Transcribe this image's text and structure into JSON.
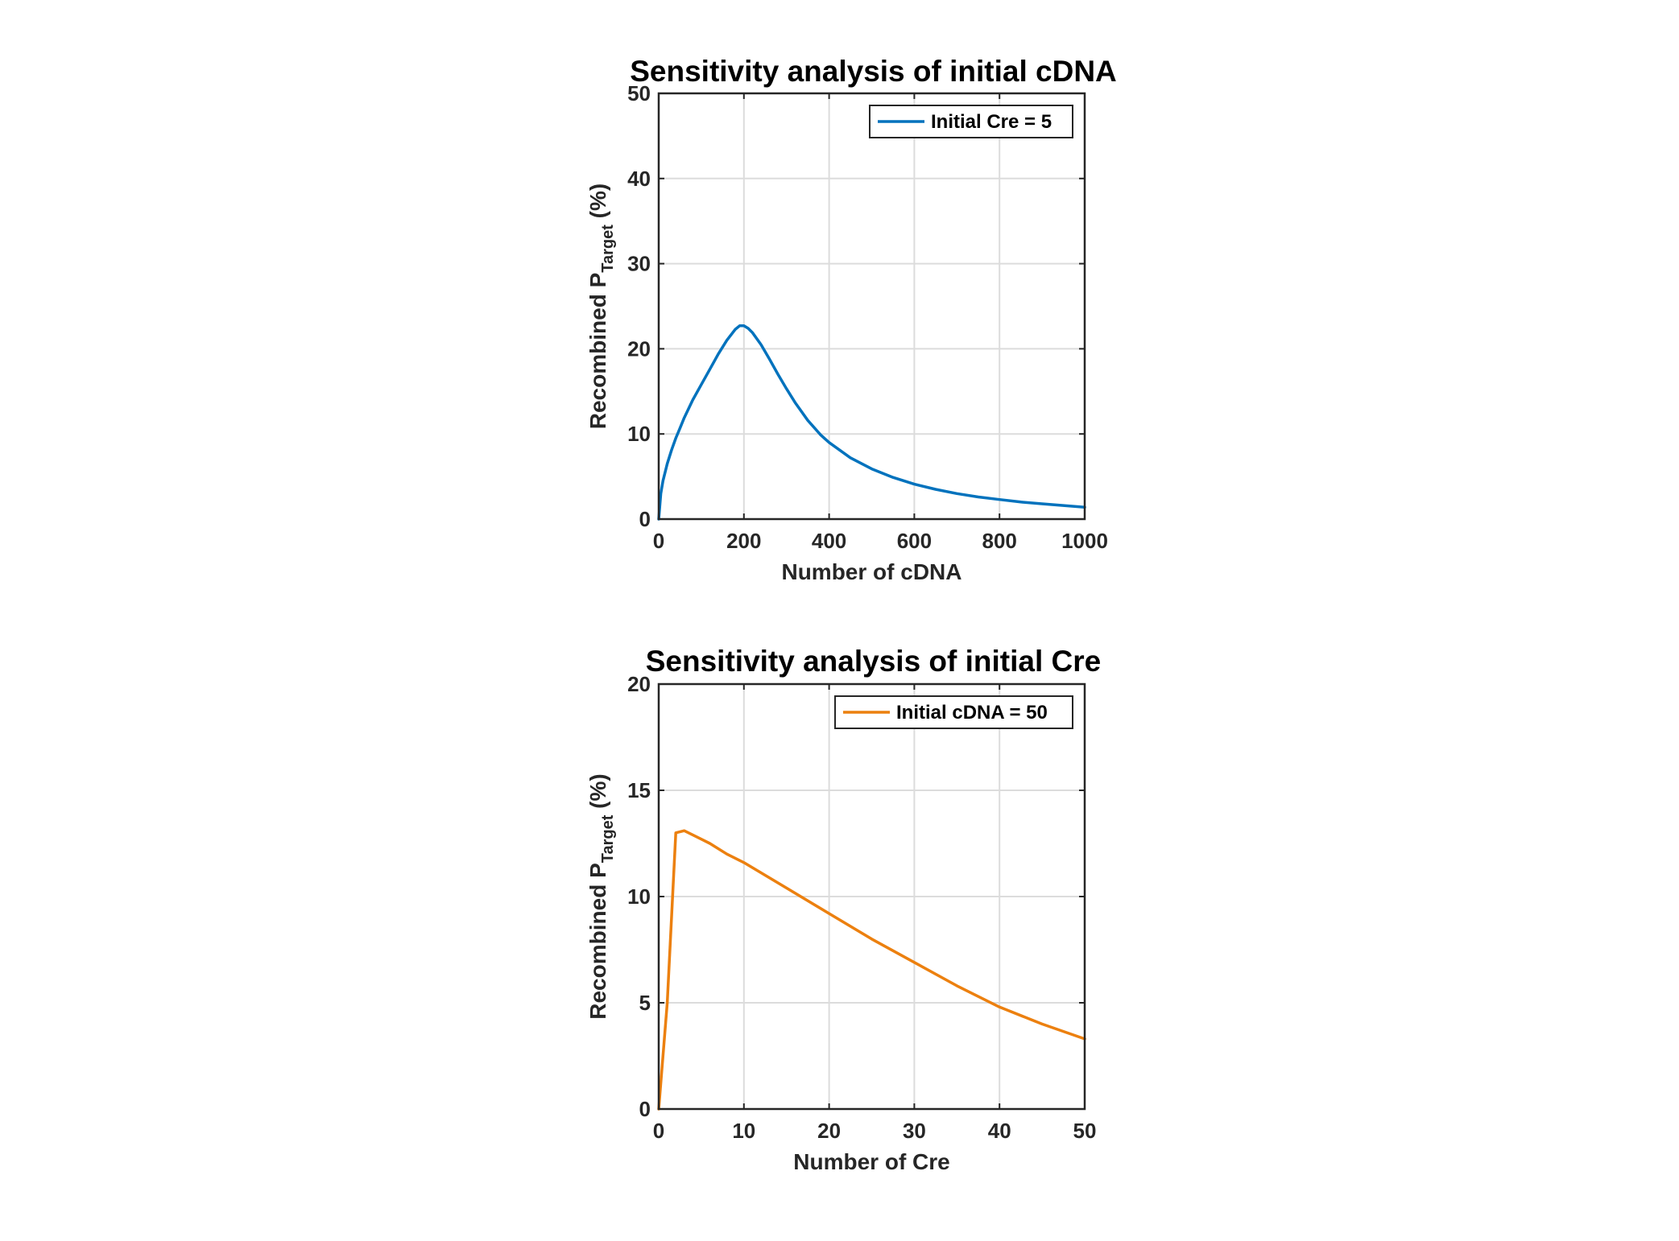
{
  "chart_data": [
    {
      "type": "line",
      "title": "Sensitivity analysis of initial cDNA",
      "xlabel": "Number of cDNA",
      "ylabel": {
        "main": "Recombined P",
        "subscript": "Target",
        "suffix": " (%)"
      },
      "xlim": [
        0,
        1000
      ],
      "ylim": [
        0,
        50
      ],
      "xticks": [
        0,
        200,
        400,
        600,
        800,
        1000
      ],
      "yticks": [
        0,
        10,
        20,
        30,
        40,
        50
      ],
      "grid": true,
      "legend_position": "top-right",
      "series": [
        {
          "name": "Initial Cre = 5",
          "color": "#0072BD",
          "x": [
            0,
            5,
            10,
            20,
            30,
            40,
            50,
            60,
            80,
            100,
            120,
            140,
            160,
            180,
            190,
            200,
            210,
            220,
            240,
            260,
            280,
            300,
            320,
            350,
            380,
            400,
            450,
            500,
            550,
            600,
            650,
            700,
            750,
            800,
            850,
            900,
            950,
            1000
          ],
          "y": [
            0,
            3.0,
            4.5,
            6.5,
            8.1,
            9.5,
            10.7,
            11.9,
            14.0,
            15.8,
            17.6,
            19.4,
            21.0,
            22.3,
            22.7,
            22.7,
            22.4,
            21.9,
            20.5,
            18.8,
            17.0,
            15.3,
            13.7,
            11.6,
            9.9,
            9.0,
            7.2,
            5.9,
            4.9,
            4.1,
            3.5,
            3.0,
            2.6,
            2.3,
            2.0,
            1.8,
            1.6,
            1.4
          ]
        }
      ]
    },
    {
      "type": "line",
      "title": "Sensitivity analysis of initial Cre",
      "xlabel": "Number of Cre",
      "ylabel": {
        "main": "Recombined P",
        "subscript": "Target",
        "suffix": " (%)"
      },
      "xlim": [
        0,
        50
      ],
      "ylim": [
        0,
        20
      ],
      "xticks": [
        0,
        10,
        20,
        30,
        40,
        50
      ],
      "yticks": [
        0,
        5,
        10,
        15,
        20
      ],
      "grid": true,
      "legend_position": "top-right",
      "series": [
        {
          "name": "Initial cDNA = 50",
          "color": "#EC800F",
          "x": [
            0,
            1,
            2,
            3,
            4,
            5,
            6,
            8,
            10,
            15,
            20,
            25,
            30,
            35,
            40,
            45,
            50
          ],
          "y": [
            0,
            5.0,
            13.0,
            13.1,
            12.9,
            12.7,
            12.5,
            12.0,
            11.6,
            10.4,
            9.2,
            8.0,
            6.9,
            5.8,
            4.8,
            4.0,
            3.3
          ]
        }
      ]
    }
  ]
}
